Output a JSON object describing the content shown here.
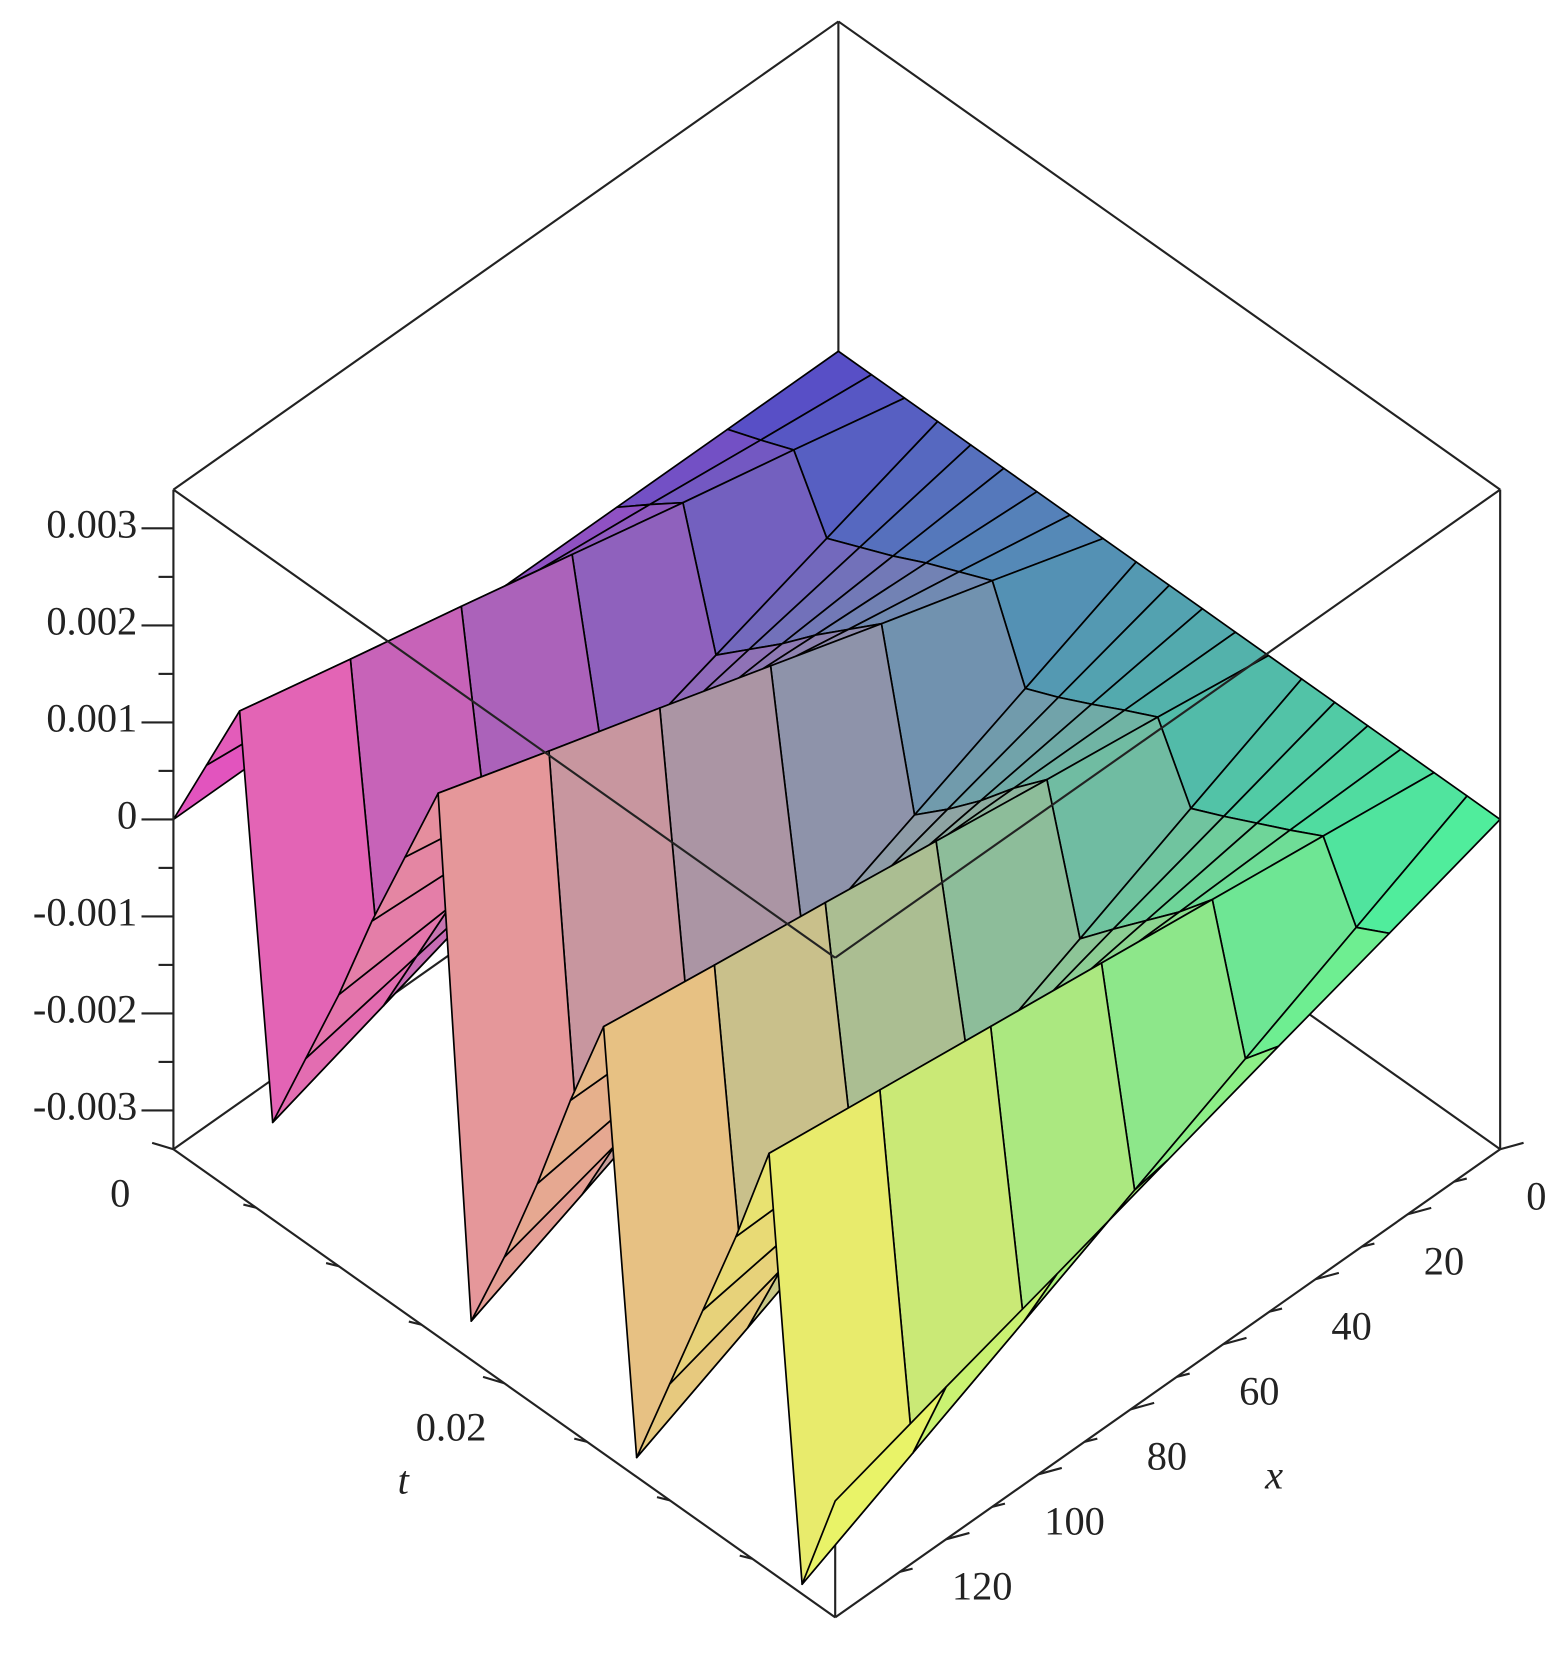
{
  "chart_data": {
    "type": "surface3d",
    "x_label": "x",
    "t_label": "t",
    "x": [
      0,
      24,
      48,
      72,
      96,
      120,
      144
    ],
    "t": [
      0,
      0.002,
      0.004,
      0.006,
      0.008,
      0.01,
      0.012,
      0.014,
      0.016,
      0.018,
      0.02,
      0.022,
      0.024,
      0.026,
      0.028,
      0.03,
      0.032,
      0.034,
      0.036,
      0.038,
      0.04
    ],
    "z": [
      [
        0,
        0,
        0,
        0,
        0,
        0,
        0,
        0,
        0,
        0,
        0,
        0,
        0,
        0,
        0,
        0,
        0,
        0,
        0,
        0,
        0
      ],
      [
        0,
        0.00013,
        0.00027,
        -0.0004,
        -0.00025,
        -0.0001,
        7e-05,
        0.00022,
        0.00037,
        -0.0005,
        -0.00035,
        -0.00018,
        0,
        0.00017,
        -0.00053,
        -0.00037,
        -0.0002,
        -3e-05,
        0.00015,
        -0.00055,
        -0.00037
      ],
      [
        0,
        0.00027,
        0.00053,
        -0.0008,
        -0.0005,
        -0.0002,
        0.00013,
        0.00043,
        0.00073,
        -0.001,
        -0.0007,
        -0.00037,
        0,
        0.00033,
        -0.00107,
        -0.00073,
        -0.0004,
        -7e-05,
        0.0003,
        -0.0011,
        -0.00073
      ],
      [
        0,
        0.0004,
        0.0008,
        -0.0012,
        -0.00075,
        -0.0003,
        0.0002,
        0.00065,
        0.0011,
        -0.0015,
        -0.00105,
        -0.00055,
        0,
        0.0005,
        -0.0016,
        -0.0011,
        -0.0006,
        -0.0001,
        0.00045,
        -0.00165,
        -0.0011
      ],
      [
        0,
        0.00053,
        0.00107,
        -0.0016,
        -0.001,
        -0.0004,
        0.00027,
        0.00087,
        0.00147,
        -0.002,
        -0.0014,
        -0.00073,
        0,
        0.00067,
        -0.00213,
        -0.00147,
        -0.0008,
        -0.00013,
        0.0006,
        -0.0022,
        -0.00147
      ],
      [
        0,
        0.00067,
        0.00133,
        -0.002,
        -0.00125,
        -0.0005,
        0.00033,
        0.00108,
        0.00183,
        -0.0025,
        -0.00175,
        -0.00092,
        0,
        0.00083,
        -0.00267,
        -0.00183,
        -0.001,
        -0.00017,
        0.00075,
        -0.00275,
        -0.00183
      ],
      [
        0,
        0.0008,
        0.0016,
        -0.0024,
        -0.0015,
        -0.0006,
        0.0004,
        0.0013,
        0.0022,
        -0.003,
        -0.0021,
        -0.0011,
        0,
        0.001,
        -0.0032,
        -0.0022,
        -0.0012,
        -0.0002,
        0.0009,
        -0.0033,
        -0.0022
      ]
    ],
    "xlim": [
      0,
      144
    ],
    "tlim": [
      0,
      0.04
    ],
    "zlim": [
      -0.0034,
      0.0034
    ],
    "xticks": [
      0,
      20,
      40,
      60,
      80,
      100,
      120
    ],
    "x_minor_ticks": [
      10,
      30,
      50,
      70,
      90,
      110,
      130
    ],
    "tticks": [
      0,
      0.02
    ],
    "t_minor_ticks": [
      0.005,
      0.01,
      0.015,
      0.025,
      0.03,
      0.035
    ],
    "zticks": [
      -0.003,
      -0.002,
      -0.001,
      0,
      0.001,
      0.002,
      0.003
    ],
    "z_minor_ticks": [
      -0.0025,
      -0.0015,
      -0.0005,
      0.0005,
      0.0015,
      0.0025
    ],
    "surface_colors": {
      "x_min_t_min": "#4a4ac8",
      "x_max_t_min": "#f050c0",
      "x_min_t_max": "#40f0a0",
      "x_max_t_max": "#f8f860"
    },
    "mesh_color": "#000000",
    "box": true
  }
}
